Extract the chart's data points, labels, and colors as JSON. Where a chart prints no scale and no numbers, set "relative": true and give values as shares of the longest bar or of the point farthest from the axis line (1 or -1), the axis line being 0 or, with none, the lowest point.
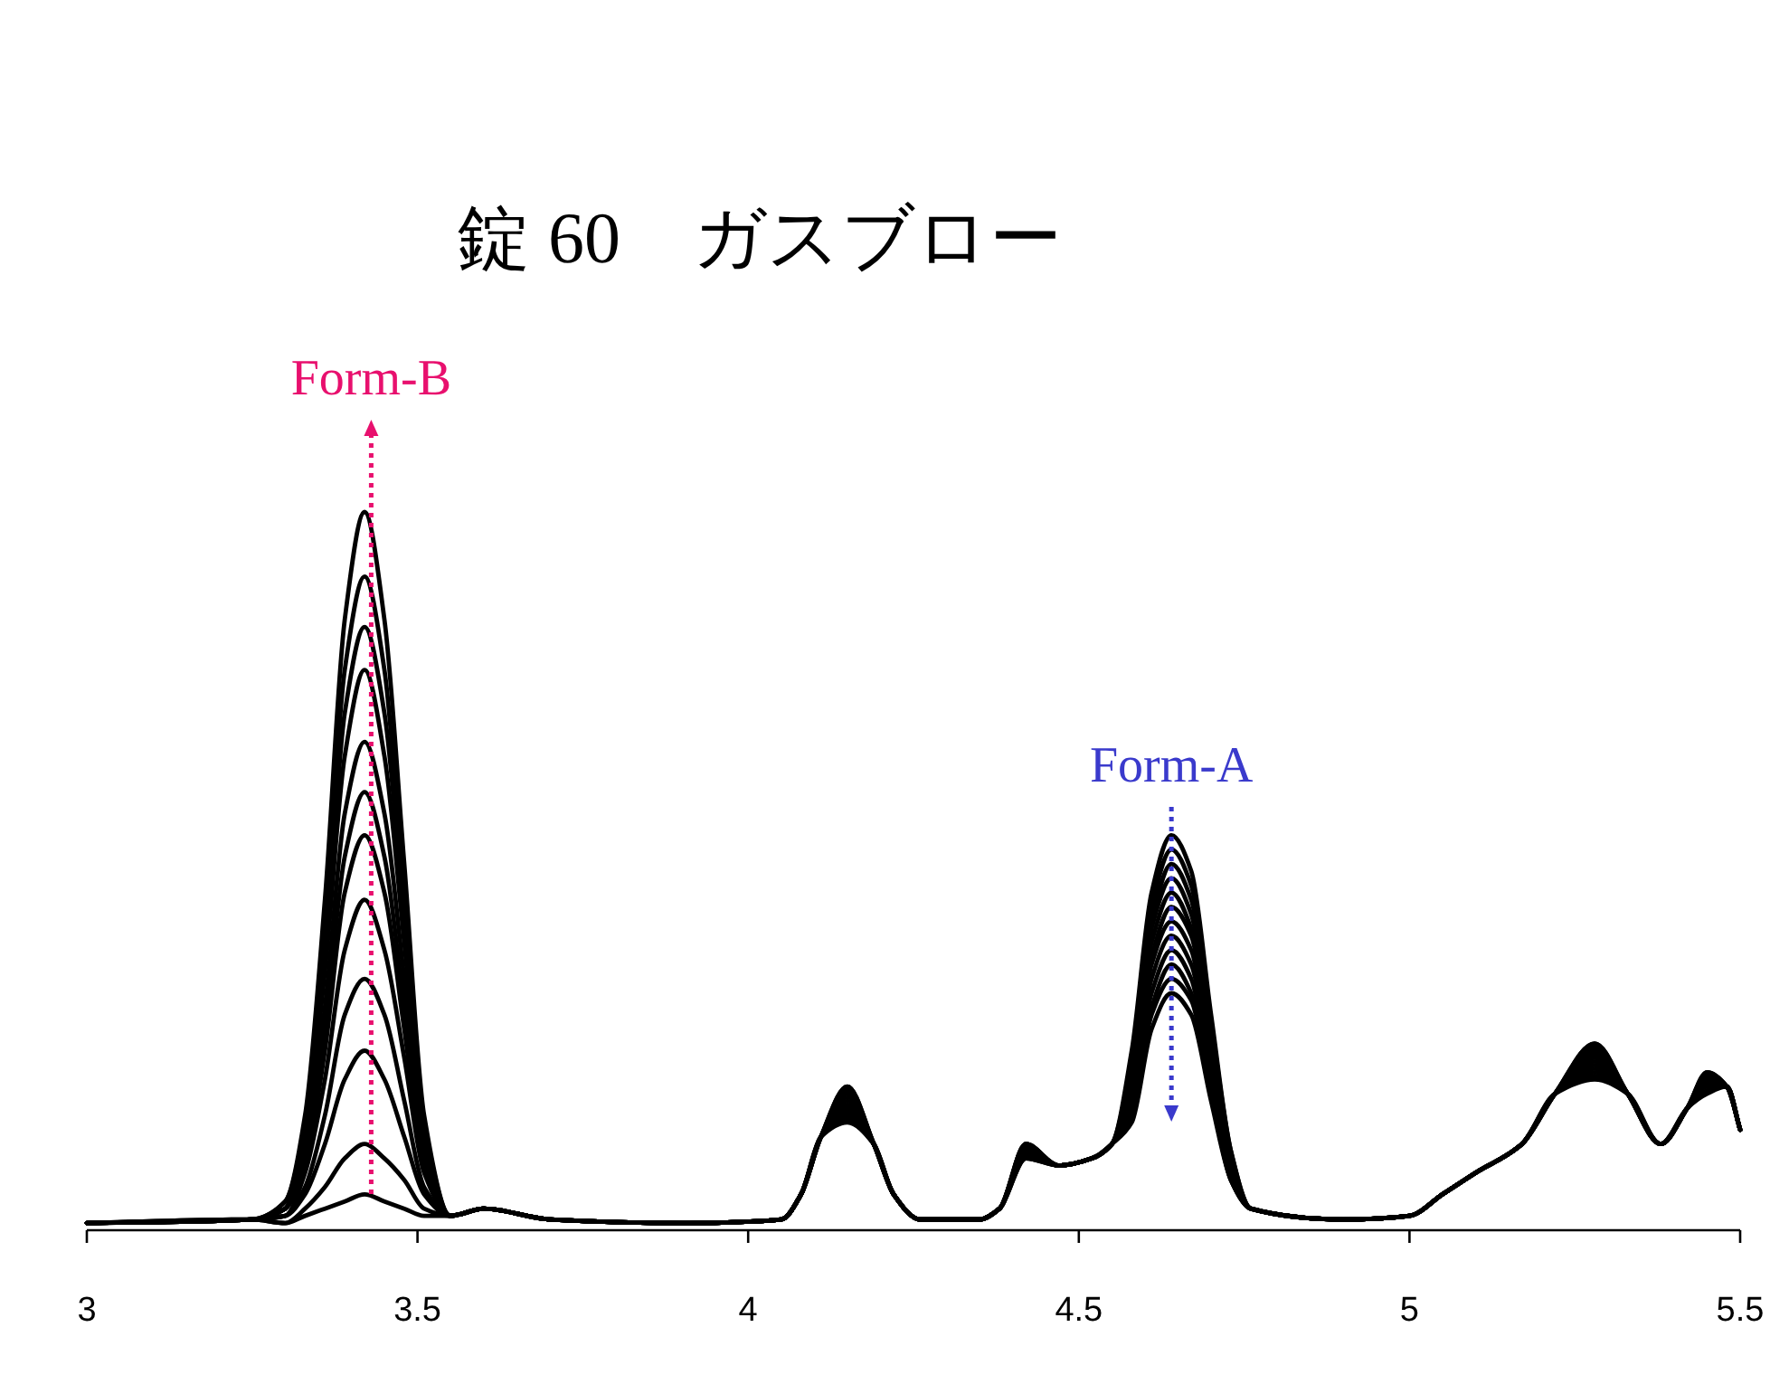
{
  "chart_data": {
    "type": "line",
    "relative": true,
    "title": "錠 60　ガスブロー",
    "x": [
      3.0,
      3.25,
      3.3,
      3.33,
      3.36,
      3.39,
      3.42,
      3.45,
      3.48,
      3.51,
      3.55,
      3.6,
      3.7,
      3.9,
      4.05,
      4.08,
      4.11,
      4.15,
      4.19,
      4.22,
      4.26,
      4.35,
      4.38,
      4.42,
      4.47,
      4.52,
      4.55,
      4.58,
      4.61,
      4.64,
      4.67,
      4.7,
      4.73,
      4.76,
      4.9,
      5.0,
      5.05,
      5.1,
      5.17,
      5.22,
      5.28,
      5.33,
      5.38,
      5.42,
      5.45,
      5.48,
      5.5
    ],
    "xlim": [
      3,
      5.5
    ],
    "xticks": [
      3,
      3.5,
      4,
      4.5,
      5,
      5.5
    ],
    "series": [
      {
        "color": "#000000",
        "values": [
          0.01,
          0.015,
          0.04,
          0.16,
          0.46,
          0.85,
          1.0,
          0.85,
          0.51,
          0.16,
          0.02,
          0.03,
          0.015,
          0.01,
          0.015,
          0.05,
          0.13,
          0.15,
          0.12,
          0.05,
          0.015,
          0.015,
          0.03,
          0.1,
          0.09,
          0.1,
          0.12,
          0.15,
          0.28,
          0.33,
          0.3,
          0.18,
          0.07,
          0.03,
          0.015,
          0.02,
          0.05,
          0.08,
          0.12,
          0.19,
          0.21,
          0.19,
          0.12,
          0.17,
          0.19,
          0.2,
          0.14
        ]
      },
      {
        "color": "#000000",
        "values": [
          0.01,
          0.015,
          0.04,
          0.15,
          0.42,
          0.78,
          0.91,
          0.78,
          0.46,
          0.15,
          0.02,
          0.03,
          0.015,
          0.01,
          0.015,
          0.05,
          0.13,
          0.155,
          0.12,
          0.05,
          0.015,
          0.015,
          0.03,
          0.1,
          0.09,
          0.1,
          0.12,
          0.16,
          0.3,
          0.35,
          0.32,
          0.19,
          0.07,
          0.03,
          0.015,
          0.02,
          0.05,
          0.08,
          0.12,
          0.19,
          0.215,
          0.19,
          0.12,
          0.17,
          0.195,
          0.2,
          0.14
        ]
      },
      {
        "color": "#000000",
        "values": [
          0.01,
          0.015,
          0.03,
          0.13,
          0.38,
          0.72,
          0.84,
          0.72,
          0.43,
          0.13,
          0.02,
          0.03,
          0.015,
          0.01,
          0.015,
          0.05,
          0.13,
          0.16,
          0.12,
          0.05,
          0.015,
          0.015,
          0.03,
          0.105,
          0.09,
          0.1,
          0.12,
          0.17,
          0.31,
          0.37,
          0.33,
          0.2,
          0.07,
          0.03,
          0.015,
          0.02,
          0.05,
          0.08,
          0.12,
          0.19,
          0.22,
          0.19,
          0.12,
          0.17,
          0.2,
          0.2,
          0.14
        ]
      },
      {
        "color": "#000000",
        "values": [
          0.01,
          0.015,
          0.03,
          0.13,
          0.36,
          0.66,
          0.78,
          0.66,
          0.4,
          0.13,
          0.02,
          0.03,
          0.015,
          0.01,
          0.015,
          0.05,
          0.13,
          0.165,
          0.12,
          0.05,
          0.015,
          0.015,
          0.03,
          0.105,
          0.09,
          0.1,
          0.12,
          0.18,
          0.33,
          0.39,
          0.35,
          0.21,
          0.08,
          0.03,
          0.015,
          0.02,
          0.05,
          0.08,
          0.12,
          0.19,
          0.225,
          0.19,
          0.12,
          0.17,
          0.2,
          0.2,
          0.14
        ]
      },
      {
        "color": "#000000",
        "values": [
          0.01,
          0.015,
          0.03,
          0.11,
          0.31,
          0.58,
          0.68,
          0.58,
          0.35,
          0.11,
          0.02,
          0.03,
          0.015,
          0.01,
          0.015,
          0.05,
          0.13,
          0.17,
          0.12,
          0.05,
          0.015,
          0.015,
          0.03,
          0.11,
          0.09,
          0.1,
          0.12,
          0.18,
          0.35,
          0.41,
          0.37,
          0.23,
          0.08,
          0.03,
          0.015,
          0.02,
          0.05,
          0.08,
          0.12,
          0.19,
          0.23,
          0.19,
          0.12,
          0.17,
          0.205,
          0.2,
          0.14
        ]
      },
      {
        "color": "#000000",
        "values": [
          0.01,
          0.015,
          0.03,
          0.1,
          0.28,
          0.52,
          0.61,
          0.52,
          0.31,
          0.1,
          0.02,
          0.03,
          0.015,
          0.01,
          0.015,
          0.05,
          0.13,
          0.175,
          0.12,
          0.05,
          0.015,
          0.015,
          0.03,
          0.11,
          0.09,
          0.1,
          0.12,
          0.19,
          0.37,
          0.43,
          0.39,
          0.24,
          0.09,
          0.03,
          0.015,
          0.02,
          0.05,
          0.08,
          0.12,
          0.19,
          0.235,
          0.19,
          0.12,
          0.17,
          0.205,
          0.2,
          0.14
        ]
      },
      {
        "color": "#000000",
        "values": [
          0.01,
          0.015,
          0.03,
          0.09,
          0.25,
          0.47,
          0.55,
          0.47,
          0.28,
          0.09,
          0.02,
          0.03,
          0.015,
          0.01,
          0.015,
          0.05,
          0.13,
          0.18,
          0.12,
          0.05,
          0.015,
          0.015,
          0.03,
          0.11,
          0.09,
          0.1,
          0.12,
          0.2,
          0.38,
          0.45,
          0.41,
          0.25,
          0.09,
          0.03,
          0.015,
          0.02,
          0.05,
          0.08,
          0.12,
          0.19,
          0.24,
          0.19,
          0.12,
          0.17,
          0.21,
          0.2,
          0.14
        ]
      },
      {
        "color": "#000000",
        "values": [
          0.01,
          0.015,
          0.02,
          0.08,
          0.21,
          0.39,
          0.46,
          0.39,
          0.24,
          0.08,
          0.02,
          0.03,
          0.015,
          0.01,
          0.015,
          0.05,
          0.13,
          0.185,
          0.12,
          0.05,
          0.015,
          0.015,
          0.03,
          0.115,
          0.09,
          0.1,
          0.12,
          0.21,
          0.4,
          0.47,
          0.42,
          0.26,
          0.09,
          0.03,
          0.015,
          0.02,
          0.05,
          0.08,
          0.12,
          0.19,
          0.245,
          0.19,
          0.12,
          0.17,
          0.21,
          0.2,
          0.14
        ]
      },
      {
        "color": "#000000",
        "values": [
          0.01,
          0.015,
          0.02,
          0.06,
          0.16,
          0.3,
          0.35,
          0.3,
          0.18,
          0.06,
          0.02,
          0.03,
          0.015,
          0.01,
          0.015,
          0.05,
          0.13,
          0.19,
          0.12,
          0.05,
          0.015,
          0.015,
          0.03,
          0.115,
          0.09,
          0.1,
          0.12,
          0.22,
          0.42,
          0.49,
          0.44,
          0.27,
          0.1,
          0.03,
          0.015,
          0.02,
          0.05,
          0.08,
          0.12,
          0.19,
          0.25,
          0.19,
          0.12,
          0.17,
          0.215,
          0.2,
          0.14
        ]
      },
      {
        "color": "#000000",
        "values": [
          0.01,
          0.015,
          0.02,
          0.05,
          0.12,
          0.21,
          0.25,
          0.21,
          0.13,
          0.05,
          0.02,
          0.03,
          0.015,
          0.01,
          0.015,
          0.05,
          0.13,
          0.195,
          0.12,
          0.05,
          0.015,
          0.015,
          0.03,
          0.12,
          0.09,
          0.1,
          0.12,
          0.23,
          0.43,
          0.51,
          0.46,
          0.28,
          0.1,
          0.03,
          0.015,
          0.02,
          0.05,
          0.08,
          0.12,
          0.19,
          0.255,
          0.19,
          0.12,
          0.17,
          0.215,
          0.2,
          0.14
        ]
      },
      {
        "color": "#000000",
        "values": [
          0.01,
          0.015,
          0.01,
          0.03,
          0.06,
          0.1,
          0.12,
          0.1,
          0.07,
          0.03,
          0.02,
          0.03,
          0.015,
          0.01,
          0.015,
          0.05,
          0.13,
          0.2,
          0.12,
          0.05,
          0.015,
          0.015,
          0.03,
          0.12,
          0.09,
          0.1,
          0.12,
          0.24,
          0.45,
          0.53,
          0.48,
          0.29,
          0.11,
          0.03,
          0.015,
          0.02,
          0.05,
          0.08,
          0.12,
          0.19,
          0.26,
          0.19,
          0.12,
          0.17,
          0.22,
          0.2,
          0.14
        ]
      },
      {
        "color": "#000000",
        "values": [
          0.01,
          0.015,
          0.01,
          0.02,
          0.03,
          0.04,
          0.05,
          0.04,
          0.03,
          0.02,
          0.02,
          0.03,
          0.015,
          0.01,
          0.015,
          0.05,
          0.13,
          0.2,
          0.12,
          0.05,
          0.015,
          0.015,
          0.03,
          0.12,
          0.09,
          0.1,
          0.12,
          0.25,
          0.47,
          0.55,
          0.5,
          0.3,
          0.11,
          0.03,
          0.015,
          0.02,
          0.05,
          0.08,
          0.12,
          0.19,
          0.26,
          0.19,
          0.12,
          0.17,
          0.22,
          0.2,
          0.14
        ]
      }
    ],
    "ref_lines": [
      {
        "axis": "x",
        "value": 3.43,
        "label": "Form-B",
        "color": "#e8106e",
        "line_style": "dotted"
      },
      {
        "axis": "x",
        "value": 4.64,
        "label": "Form-A",
        "color": "#3a3acc",
        "line_style": "dotted"
      }
    ]
  }
}
